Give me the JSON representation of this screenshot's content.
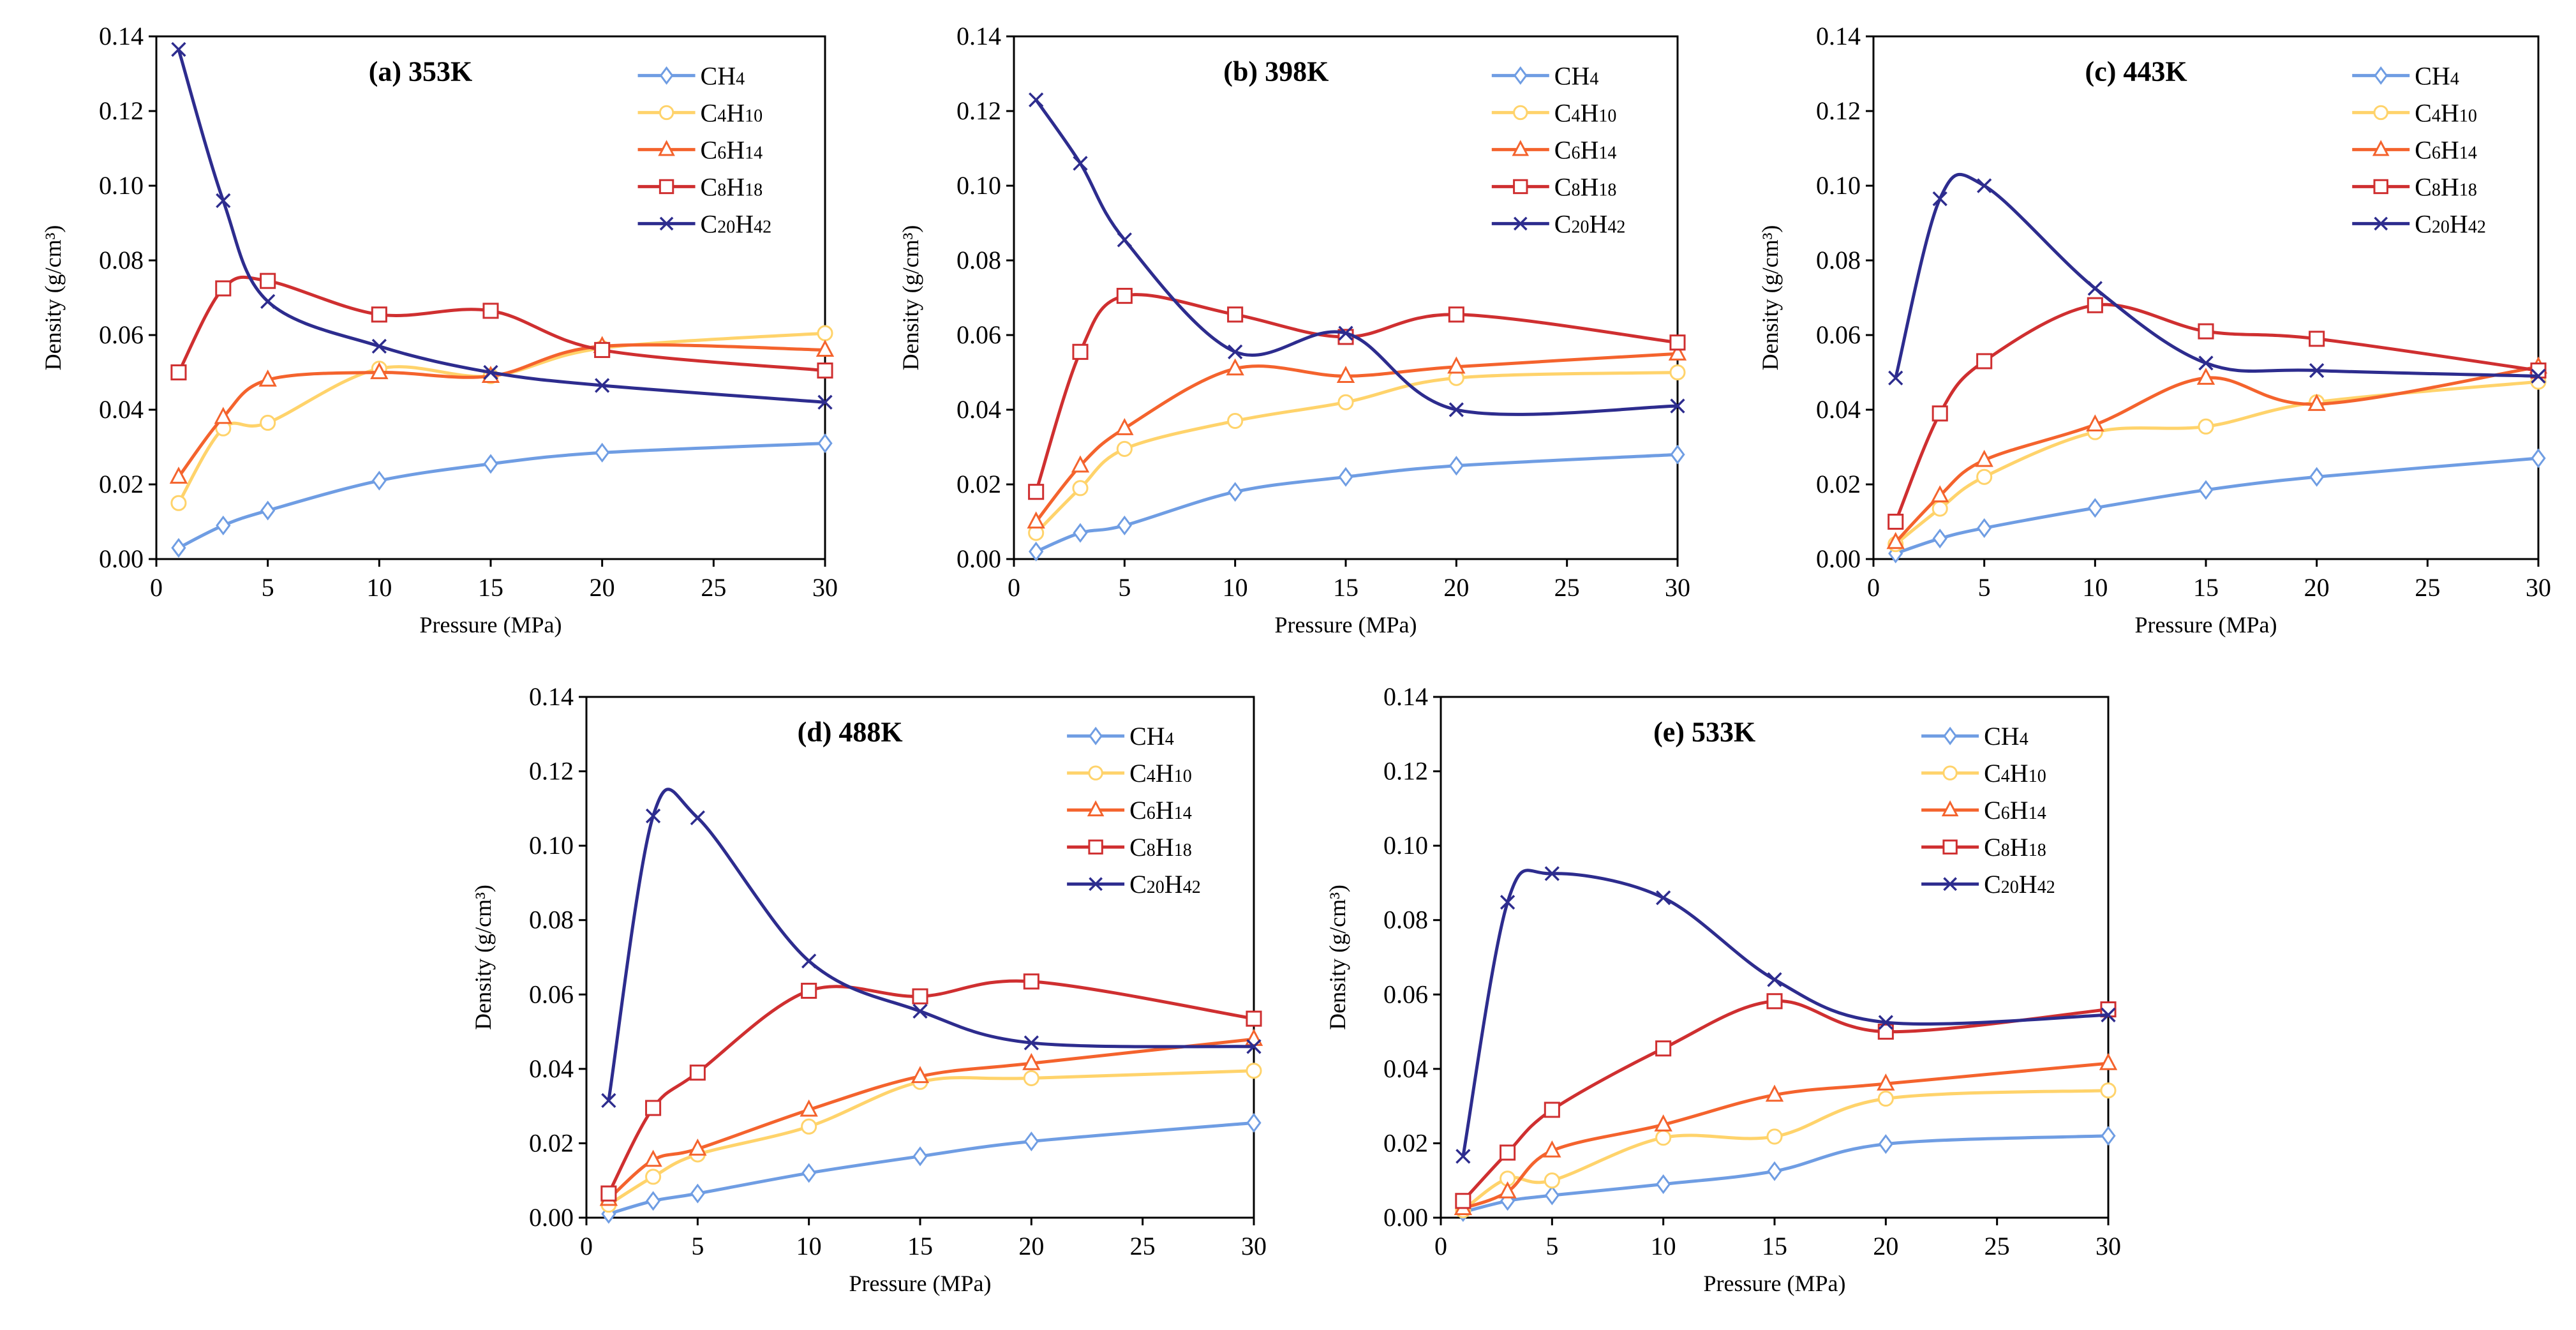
{
  "chart_data": {
    "type": "line",
    "layout": "5 panels: 3 on top row, 2 on bottom row",
    "series_styles": [
      {
        "name": "CH4",
        "color": "#6F9DE3",
        "marker": "diamond"
      },
      {
        "name": "C4H10",
        "color": "#FFD36B",
        "marker": "circle"
      },
      {
        "name": "C6H14",
        "color": "#F4632D",
        "marker": "triangle"
      },
      {
        "name": "C8H18",
        "color": "#CF2F30",
        "marker": "square"
      },
      {
        "name": "C20H42",
        "color": "#2D2C8E",
        "marker": "x"
      }
    ],
    "panels": [
      {
        "title": "(a) 353K",
        "xlabel": "Pressure (MPa)",
        "ylabel": "Density (g/cm³)",
        "xlim": [
          0,
          30
        ],
        "ylim": [
          0,
          0.14
        ],
        "xticks": [
          "0",
          "5",
          "10",
          "15",
          "20",
          "25",
          "30"
        ],
        "yticks": [
          "0.00",
          "0.02",
          "0.04",
          "0.06",
          "0.08",
          "0.10",
          "0.12",
          "0.14"
        ],
        "legend": "top-right",
        "grid": false,
        "x": [
          1,
          3,
          5,
          10,
          15,
          20,
          30
        ],
        "series": [
          {
            "name": "CH4",
            "values": [
              0.003,
              0.009,
              0.013,
              0.021,
              0.0255,
              0.0285,
              0.031
            ]
          },
          {
            "name": "C4H10",
            "values": [
              0.015,
              0.035,
              0.0365,
              0.051,
              0.049,
              0.0565,
              0.0605
            ]
          },
          {
            "name": "C6H14",
            "values": [
              0.022,
              0.038,
              0.048,
              0.05,
              0.049,
              0.057,
              0.056
            ]
          },
          {
            "name": "C8H18",
            "values": [
              0.05,
              0.0725,
              0.0745,
              0.0655,
              0.0665,
              0.056,
              0.0505
            ]
          },
          {
            "name": "C20H42",
            "values": [
              0.1365,
              0.096,
              0.069,
              0.057,
              0.05,
              0.0465,
              0.042
            ]
          }
        ]
      },
      {
        "title": "(b) 398K",
        "xlabel": "Pressure (MPa)",
        "ylabel": "Density (g/cm³)",
        "xlim": [
          0,
          30
        ],
        "ylim": [
          0,
          0.14
        ],
        "xticks": [
          "0",
          "5",
          "10",
          "15",
          "20",
          "25",
          "30"
        ],
        "yticks": [
          "0.00",
          "0.02",
          "0.04",
          "0.06",
          "0.08",
          "0.10",
          "0.12",
          "0.14"
        ],
        "legend": "top-right",
        "grid": false,
        "x": [
          1,
          3,
          5,
          10,
          15,
          20,
          30
        ],
        "series": [
          {
            "name": "CH4",
            "values": [
              0.002,
              0.007,
              0.009,
              0.018,
              0.022,
              0.025,
              0.028
            ]
          },
          {
            "name": "C4H10",
            "values": [
              0.007,
              0.019,
              0.0295,
              0.037,
              0.042,
              0.0485,
              0.05
            ]
          },
          {
            "name": "C6H14",
            "values": [
              0.01,
              0.025,
              0.035,
              0.051,
              0.049,
              0.0515,
              0.055
            ]
          },
          {
            "name": "C8H18",
            "values": [
              0.018,
              0.0555,
              0.0705,
              0.0655,
              0.0595,
              0.0655,
              0.058
            ]
          },
          {
            "name": "C20H42",
            "values": [
              0.123,
              0.106,
              0.0855,
              0.0555,
              0.0605,
              0.04,
              0.041
            ]
          }
        ]
      },
      {
        "title": "(c) 443K",
        "xlabel": "Pressure (MPa)",
        "ylabel": "Density (g/cm³)",
        "xlim": [
          0,
          30
        ],
        "ylim": [
          0,
          0.14
        ],
        "xticks": [
          "0",
          "5",
          "10",
          "15",
          "20",
          "25",
          "30"
        ],
        "yticks": [
          "0.00",
          "0.02",
          "0.04",
          "0.06",
          "0.08",
          "0.10",
          "0.12",
          "0.14"
        ],
        "legend": "top-right",
        "grid": false,
        "x": [
          1,
          3,
          5,
          10,
          15,
          20,
          30
        ],
        "series": [
          {
            "name": "CH4",
            "values": [
              0.0015,
              0.0055,
              0.0083,
              0.0137,
              0.0185,
              0.022,
              0.027
            ]
          },
          {
            "name": "C4H10",
            "values": [
              0.004,
              0.0135,
              0.022,
              0.034,
              0.0355,
              0.042,
              0.0475
            ]
          },
          {
            "name": "C6H14",
            "values": [
              0.0045,
              0.017,
              0.0265,
              0.036,
              0.0485,
              0.0415,
              0.0515
            ]
          },
          {
            "name": "C8H18",
            "values": [
              0.01,
              0.039,
              0.053,
              0.068,
              0.061,
              0.059,
              0.0505
            ]
          },
          {
            "name": "C20H42",
            "values": [
              0.0485,
              0.0965,
              0.1,
              0.0725,
              0.0525,
              0.0505,
              0.049
            ]
          }
        ]
      },
      {
        "title": "(d) 488K",
        "xlabel": "Pressure (MPa)",
        "ylabel": "Density (g/cm³)",
        "xlim": [
          0,
          30
        ],
        "ylim": [
          0,
          0.14
        ],
        "xticks": [
          "0",
          "5",
          "10",
          "15",
          "20",
          "25",
          "30"
        ],
        "yticks": [
          "0.00",
          "0.02",
          "0.04",
          "0.06",
          "0.08",
          "0.10",
          "0.12",
          "0.14"
        ],
        "legend": "top-right",
        "grid": false,
        "x": [
          1,
          3,
          5,
          10,
          15,
          20,
          30
        ],
        "series": [
          {
            "name": "CH4",
            "values": [
              0.001,
              0.0045,
              0.0065,
              0.012,
              0.0165,
              0.0205,
              0.0255
            ]
          },
          {
            "name": "C4H10",
            "values": [
              0.0035,
              0.011,
              0.017,
              0.0245,
              0.0365,
              0.0375,
              0.0395
            ]
          },
          {
            "name": "C6H14",
            "values": [
              0.005,
              0.0155,
              0.0185,
              0.029,
              0.038,
              0.0415,
              0.048
            ]
          },
          {
            "name": "C8H18",
            "values": [
              0.0065,
              0.0295,
              0.039,
              0.061,
              0.0595,
              0.0635,
              0.0535
            ]
          },
          {
            "name": "C20H42",
            "values": [
              0.0315,
              0.108,
              0.1075,
              0.069,
              0.0555,
              0.047,
              0.046
            ]
          }
        ]
      },
      {
        "title": "(e) 533K",
        "xlabel": "Pressure (MPa)",
        "ylabel": "Density (g/cm³)",
        "xlim": [
          0,
          30
        ],
        "ylim": [
          0,
          0.14
        ],
        "xticks": [
          "0",
          "5",
          "10",
          "15",
          "20",
          "25",
          "30"
        ],
        "yticks": [
          "0.00",
          "0.02",
          "0.04",
          "0.06",
          "0.08",
          "0.10",
          "0.12",
          "0.14"
        ],
        "legend": "top-right",
        "grid": false,
        "x": [
          1,
          3,
          5,
          10,
          15,
          20,
          30
        ],
        "series": [
          {
            "name": "CH4",
            "values": [
              0.0015,
              0.0045,
              0.006,
              0.009,
              0.0125,
              0.0198,
              0.022
            ]
          },
          {
            "name": "C4H10",
            "values": [
              0.002,
              0.0105,
              0.01,
              0.0215,
              0.0218,
              0.032,
              0.0342
            ]
          },
          {
            "name": "C6H14",
            "values": [
              0.0025,
              0.007,
              0.018,
              0.025,
              0.033,
              0.036,
              0.0415
            ]
          },
          {
            "name": "C8H18",
            "values": [
              0.0045,
              0.0175,
              0.029,
              0.0455,
              0.0582,
              0.05,
              0.056
            ]
          },
          {
            "name": "C20H42",
            "values": [
              0.0165,
              0.0848,
              0.0925,
              0.086,
              0.064,
              0.0525,
              0.0545
            ]
          }
        ]
      }
    ]
  }
}
